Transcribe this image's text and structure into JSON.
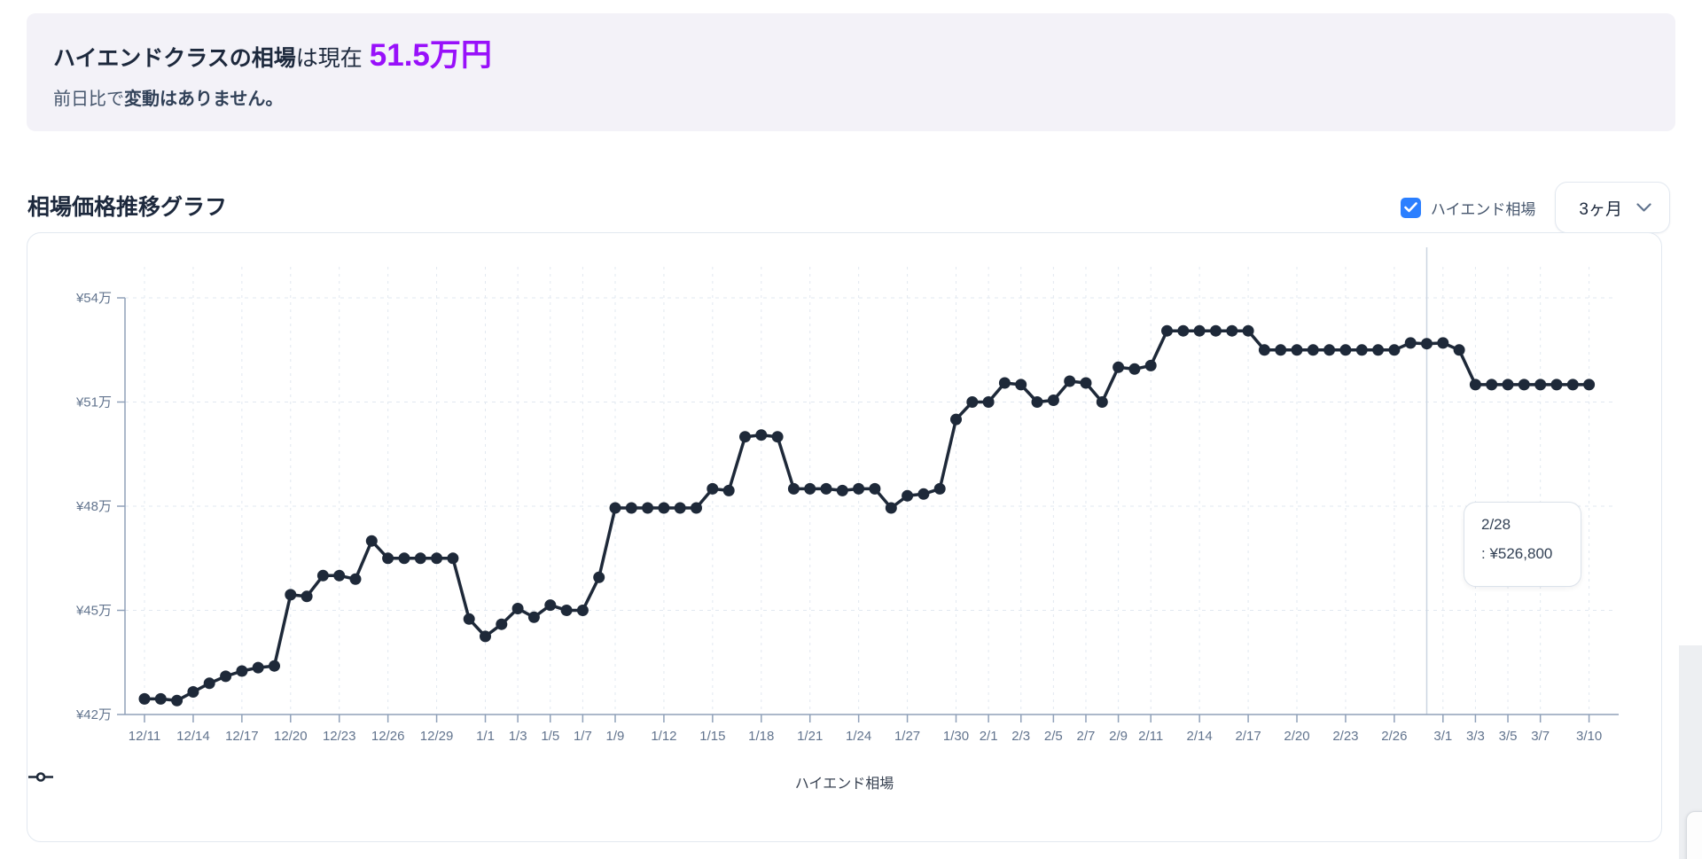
{
  "banner": {
    "title_bold": "ハイエンドクラスの相場",
    "title_rest": "は現在",
    "price": "51.5万円",
    "subtitle_prefix": "前日比で",
    "subtitle_bold": "変動はありません。"
  },
  "section": {
    "title": "相場価格推移グラフ",
    "checkbox_label": "ハイエンド相場",
    "checkbox_checked": true,
    "period_selected": "3ヶ月"
  },
  "legend": {
    "label": "ハイエンド相場"
  },
  "tooltip": {
    "date": "2/28",
    "value": ": ¥526,800"
  },
  "colors": {
    "accent_purple": "#9810fa",
    "checkbox_blue": "#2b7fff",
    "line": "#1e2939",
    "axis_line": "#90a1b9",
    "axis_text": "#62748e",
    "grid": "#e2e8f0",
    "crosshair": "#cbd5e1",
    "banner_bg": "#f3f2f8"
  },
  "chart_data": {
    "type": "line",
    "title": "相場価格推移グラフ",
    "unit": "万円",
    "ylim": [
      42,
      54
    ],
    "grid": true,
    "legend_position": "bottom",
    "series": [
      {
        "name": "ハイエンド相場",
        "values": [
          42.45,
          42.45,
          42.4,
          42.65,
          42.9,
          43.1,
          43.25,
          43.35,
          43.4,
          45.45,
          45.4,
          46.0,
          46.0,
          45.9,
          47.0,
          46.5,
          46.5,
          46.5,
          46.5,
          46.5,
          44.75,
          44.25,
          44.6,
          45.05,
          44.8,
          45.15,
          45.0,
          45.0,
          45.95,
          47.95,
          47.95,
          47.95,
          47.95,
          47.95,
          47.95,
          48.5,
          48.45,
          50.0,
          50.05,
          50.0,
          48.5,
          48.5,
          48.5,
          48.45,
          48.5,
          48.5,
          47.95,
          48.3,
          48.35,
          48.5,
          50.5,
          51.0,
          51.0,
          51.55,
          51.5,
          51.0,
          51.05,
          51.6,
          51.55,
          51.0,
          52.0,
          51.95,
          52.05,
          53.05,
          53.05,
          53.05,
          53.05,
          53.05,
          53.05,
          52.5,
          52.5,
          52.5,
          52.5,
          52.5,
          52.5,
          52.5,
          52.5,
          52.5,
          52.7,
          52.68,
          52.7,
          52.5,
          51.5,
          51.5,
          51.5,
          51.5,
          51.5,
          51.5,
          51.5,
          51.5
        ]
      }
    ],
    "x": [
      "12/11",
      "12/12",
      "12/13",
      "12/14",
      "12/15",
      "12/16",
      "12/17",
      "12/18",
      "12/19",
      "12/20",
      "12/21",
      "12/22",
      "12/23",
      "12/24",
      "12/25",
      "12/26",
      "12/27",
      "12/28",
      "12/29",
      "12/30",
      "12/31",
      "1/1",
      "1/2",
      "1/3",
      "1/4",
      "1/5",
      "1/6",
      "1/7",
      "1/8",
      "1/9",
      "1/10",
      "1/11",
      "1/12",
      "1/13",
      "1/14",
      "1/15",
      "1/16",
      "1/17",
      "1/18",
      "1/19",
      "1/20",
      "1/21",
      "1/22",
      "1/23",
      "1/24",
      "1/25",
      "1/26",
      "1/27",
      "1/28",
      "1/29",
      "1/30",
      "1/31",
      "2/1",
      "2/2",
      "2/3",
      "2/4",
      "2/5",
      "2/6",
      "2/7",
      "2/8",
      "2/9",
      "2/10",
      "2/11",
      "2/12",
      "2/13",
      "2/14",
      "2/15",
      "2/16",
      "2/17",
      "2/18",
      "2/19",
      "2/20",
      "2/21",
      "2/22",
      "2/23",
      "2/24",
      "2/25",
      "2/26",
      "2/27",
      "2/28",
      "3/1",
      "3/2",
      "3/3",
      "3/4",
      "3/5",
      "3/6",
      "3/7",
      "3/8",
      "3/9",
      "3/10"
    ],
    "x_ticks": [
      {
        "label": "12/11",
        "day": 0
      },
      {
        "label": "12/14",
        "day": 3
      },
      {
        "label": "12/17",
        "day": 6
      },
      {
        "label": "12/20",
        "day": 9
      },
      {
        "label": "12/23",
        "day": 12
      },
      {
        "label": "12/26",
        "day": 15
      },
      {
        "label": "12/29",
        "day": 18
      },
      {
        "label": "1/1",
        "day": 21
      },
      {
        "label": "1/3",
        "day": 23
      },
      {
        "label": "1/5",
        "day": 25
      },
      {
        "label": "1/7",
        "day": 27
      },
      {
        "label": "1/9",
        "day": 29
      },
      {
        "label": "1/12",
        "day": 32
      },
      {
        "label": "1/15",
        "day": 35
      },
      {
        "label": "1/18",
        "day": 38
      },
      {
        "label": "1/21",
        "day": 41
      },
      {
        "label": "1/24",
        "day": 44
      },
      {
        "label": "1/27",
        "day": 47
      },
      {
        "label": "1/30",
        "day": 50
      },
      {
        "label": "2/1",
        "day": 52
      },
      {
        "label": "2/3",
        "day": 54
      },
      {
        "label": "2/5",
        "day": 56
      },
      {
        "label": "2/7",
        "day": 58
      },
      {
        "label": "2/9",
        "day": 60
      },
      {
        "label": "2/11",
        "day": 62
      },
      {
        "label": "2/14",
        "day": 65
      },
      {
        "label": "2/17",
        "day": 68
      },
      {
        "label": "2/20",
        "day": 71
      },
      {
        "label": "2/23",
        "day": 74
      },
      {
        "label": "2/26",
        "day": 77
      },
      {
        "label": "3/1",
        "day": 80
      },
      {
        "label": "3/3",
        "day": 82
      },
      {
        "label": "3/5",
        "day": 84
      },
      {
        "label": "3/7",
        "day": 86
      },
      {
        "label": "3/10",
        "day": 89
      }
    ],
    "y_ticks": [
      {
        "label": "¥54万",
        "value": 54
      },
      {
        "label": "¥51万",
        "value": 51
      },
      {
        "label": "¥48万",
        "value": 48
      },
      {
        "label": "¥45万",
        "value": 45
      },
      {
        "label": "¥42万",
        "value": 42
      }
    ],
    "highlight": {
      "date": "2/28",
      "day_index": 79,
      "value_yen": 526800
    }
  }
}
